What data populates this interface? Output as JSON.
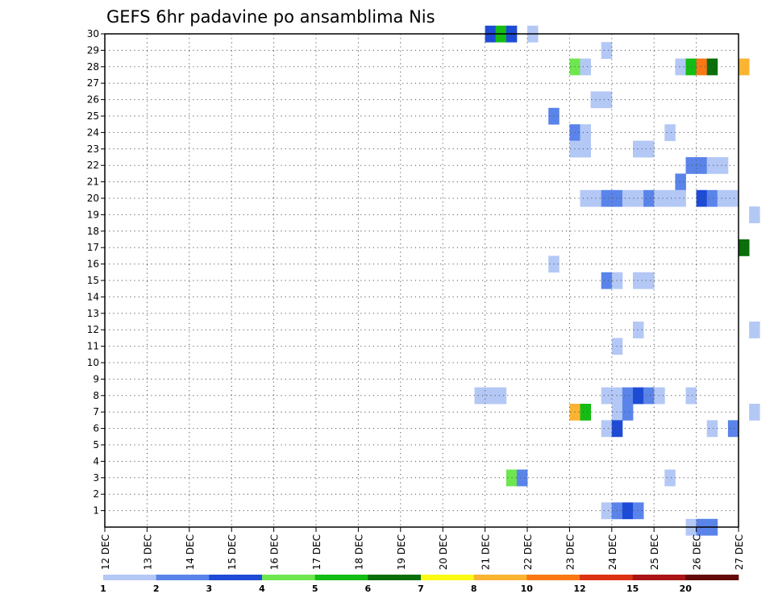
{
  "chart_data": {
    "type": "heatmap",
    "title": "GEFS 6hr padavine po ansamblima Nis",
    "xlabel": "",
    "ylabel": "",
    "x_tick_labels": [
      "12 DEC",
      "13 DEC",
      "14 DEC",
      "15 DEC",
      "16 DEC",
      "17 DEC",
      "18 DEC",
      "19 DEC",
      "20 DEC",
      "21 DEC",
      "22 DEC",
      "23 DEC",
      "24 DEC",
      "25 DEC",
      "26 DEC",
      "27 DEC"
    ],
    "x_range_days": [
      0,
      15
    ],
    "time_step_hours": 6,
    "y_tick_labels": [
      "1",
      "2",
      "3",
      "4",
      "5",
      "6",
      "7",
      "8",
      "9",
      "10",
      "11",
      "12",
      "13",
      "14",
      "15",
      "16",
      "17",
      "18",
      "19",
      "20",
      "21",
      "22",
      "23",
      "24",
      "25",
      "26",
      "27",
      "28",
      "29",
      "30"
    ],
    "y_range": [
      0,
      30
    ],
    "grid": true,
    "colorbar": {
      "placement": "bottom",
      "colors": [
        "#b4c8f6",
        "#5a84ea",
        "#1e4bd6",
        "#6ee650",
        "#14bc14",
        "#0a6e0a",
        "#fafa14",
        "#fab432",
        "#fa7814",
        "#dc3214",
        "#aa1414",
        "#640a0a"
      ],
      "tick_labels": [
        "1",
        "2",
        "3",
        "4",
        "5",
        "6",
        "7",
        "8",
        "10",
        "12",
        "15",
        "20"
      ]
    },
    "cells": [
      {
        "member": 30,
        "step": 36,
        "level": 2
      },
      {
        "member": 30,
        "step": 37,
        "level": 4
      },
      {
        "member": 30,
        "step": 38,
        "level": 2
      },
      {
        "member": 30,
        "step": 40,
        "level": 0
      },
      {
        "member": 29,
        "step": 47,
        "level": 0
      },
      {
        "member": 28,
        "step": 44,
        "level": 3
      },
      {
        "member": 28,
        "step": 45,
        "level": 0
      },
      {
        "member": 28,
        "step": 54,
        "level": 0
      },
      {
        "member": 28,
        "step": 55,
        "level": 4
      },
      {
        "member": 28,
        "step": 56,
        "level": 8
      },
      {
        "member": 28,
        "step": 57,
        "level": 5
      },
      {
        "member": 28,
        "step": 60,
        "level": 7
      },
      {
        "member": 26,
        "step": 46,
        "level": 0
      },
      {
        "member": 26,
        "step": 47,
        "level": 0
      },
      {
        "member": 25,
        "step": 42,
        "level": 1
      },
      {
        "member": 24,
        "step": 44,
        "level": 1
      },
      {
        "member": 24,
        "step": 45,
        "level": 0
      },
      {
        "member": 24,
        "step": 53,
        "level": 0
      },
      {
        "member": 23,
        "step": 44,
        "level": 0
      },
      {
        "member": 23,
        "step": 45,
        "level": 0
      },
      {
        "member": 23,
        "step": 50,
        "level": 0
      },
      {
        "member": 23,
        "step": 51,
        "level": 0
      },
      {
        "member": 22,
        "step": 55,
        "level": 1
      },
      {
        "member": 22,
        "step": 56,
        "level": 1
      },
      {
        "member": 22,
        "step": 57,
        "level": 0
      },
      {
        "member": 22,
        "step": 58,
        "level": 0
      },
      {
        "member": 21,
        "step": 54,
        "level": 1
      },
      {
        "member": 20,
        "step": 45,
        "level": 0
      },
      {
        "member": 20,
        "step": 46,
        "level": 0
      },
      {
        "member": 20,
        "step": 47,
        "level": 1
      },
      {
        "member": 20,
        "step": 48,
        "level": 1
      },
      {
        "member": 20,
        "step": 49,
        "level": 0
      },
      {
        "member": 20,
        "step": 50,
        "level": 0
      },
      {
        "member": 20,
        "step": 51,
        "level": 1
      },
      {
        "member": 20,
        "step": 52,
        "level": 0
      },
      {
        "member": 20,
        "step": 53,
        "level": 0
      },
      {
        "member": 20,
        "step": 54,
        "level": 0
      },
      {
        "member": 20,
        "step": 56,
        "level": 2
      },
      {
        "member": 20,
        "step": 57,
        "level": 1
      },
      {
        "member": 20,
        "step": 58,
        "level": 0
      },
      {
        "member": 20,
        "step": 59,
        "level": 0
      },
      {
        "member": 19,
        "step": 61,
        "level": 0
      },
      {
        "member": 17,
        "step": 60,
        "level": 5
      },
      {
        "member": 16,
        "step": 42,
        "level": 0
      },
      {
        "member": 15,
        "step": 47,
        "level": 1
      },
      {
        "member": 15,
        "step": 48,
        "level": 0
      },
      {
        "member": 15,
        "step": 50,
        "level": 0
      },
      {
        "member": 15,
        "step": 51,
        "level": 0
      },
      {
        "member": 12,
        "step": 50,
        "level": 0
      },
      {
        "member": 12,
        "step": 61,
        "level": 0
      },
      {
        "member": 11,
        "step": 48,
        "level": 0
      },
      {
        "member": 8,
        "step": 35,
        "level": 0
      },
      {
        "member": 8,
        "step": 36,
        "level": 0
      },
      {
        "member": 8,
        "step": 37,
        "level": 0
      },
      {
        "member": 8,
        "step": 47,
        "level": 0
      },
      {
        "member": 8,
        "step": 48,
        "level": 0
      },
      {
        "member": 8,
        "step": 49,
        "level": 1
      },
      {
        "member": 8,
        "step": 50,
        "level": 2
      },
      {
        "member": 8,
        "step": 51,
        "level": 1
      },
      {
        "member": 8,
        "step": 52,
        "level": 0
      },
      {
        "member": 8,
        "step": 55,
        "level": 0
      },
      {
        "member": 7,
        "step": 44,
        "level": 7
      },
      {
        "member": 7,
        "step": 45,
        "level": 4
      },
      {
        "member": 7,
        "step": 48,
        "level": 0
      },
      {
        "member": 7,
        "step": 49,
        "level": 1
      },
      {
        "member": 7,
        "step": 61,
        "level": 0
      },
      {
        "member": 6,
        "step": 47,
        "level": 0
      },
      {
        "member": 6,
        "step": 48,
        "level": 2
      },
      {
        "member": 6,
        "step": 57,
        "level": 0
      },
      {
        "member": 6,
        "step": 59,
        "level": 1
      },
      {
        "member": 3,
        "step": 38,
        "level": 3
      },
      {
        "member": 3,
        "step": 39,
        "level": 1
      },
      {
        "member": 3,
        "step": 53,
        "level": 0
      },
      {
        "member": 1,
        "step": 47,
        "level": 0
      },
      {
        "member": 1,
        "step": 48,
        "level": 1
      },
      {
        "member": 1,
        "step": 49,
        "level": 2
      },
      {
        "member": 1,
        "step": 50,
        "level": 1
      },
      {
        "member": 0,
        "step": 55,
        "level": 0
      },
      {
        "member": 0,
        "step": 56,
        "level": 1
      },
      {
        "member": 0,
        "step": 57,
        "level": 1
      }
    ]
  }
}
